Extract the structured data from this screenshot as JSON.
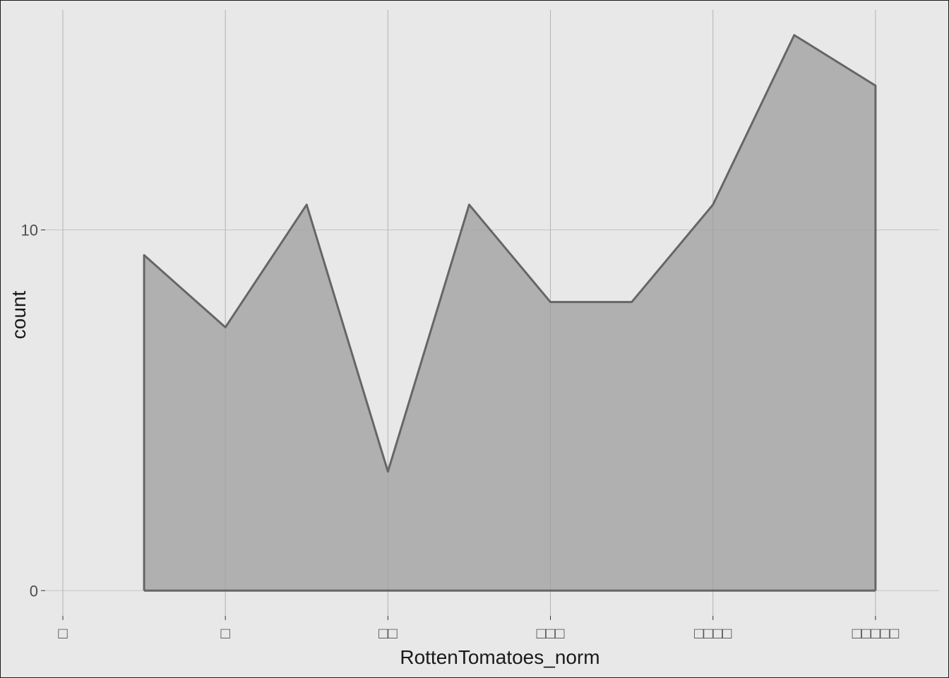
{
  "chart_data": {
    "type": "area",
    "title": "",
    "xlabel": "RottenTomatoes_norm",
    "ylabel": "count",
    "x": [
      0.5,
      1.0,
      1.5,
      2.0,
      2.5,
      3.0,
      3.5,
      4.0,
      4.5,
      5.0
    ],
    "y": [
      9.3,
      7.3,
      10.7,
      3.3,
      10.7,
      8.0,
      8.0,
      10.7,
      15.4,
      14.0
    ],
    "xlim": [
      0,
      5.5
    ],
    "ylim": [
      -0.7,
      16.1
    ],
    "x_ticks": [
      {
        "value": 0,
        "label": "□"
      },
      {
        "value": 1,
        "label": "□"
      },
      {
        "value": 2,
        "label": "□□"
      },
      {
        "value": 3,
        "label": "□□□"
      },
      {
        "value": 4,
        "label": "□□□□"
      },
      {
        "value": 5,
        "label": "□□□□□"
      }
    ],
    "y_ticks": [
      {
        "value": 0,
        "label": "0"
      },
      {
        "value": 10,
        "label": "10"
      }
    ],
    "grid": true,
    "fill_color": "#a6a6a6",
    "line_color": "#666666",
    "background": "#e8e8e8"
  }
}
